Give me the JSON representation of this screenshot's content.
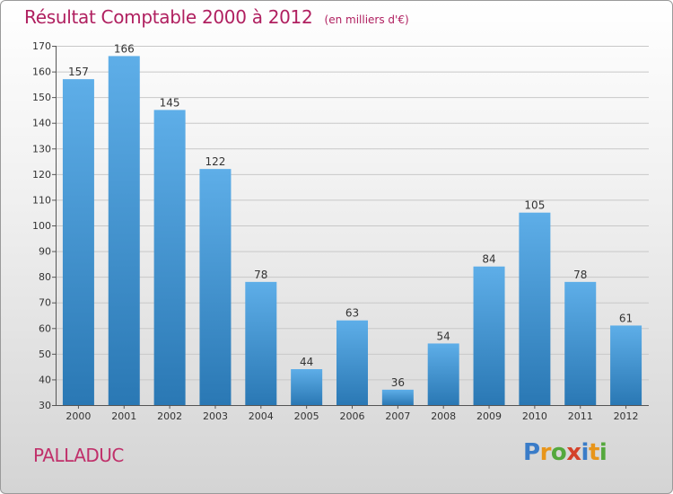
{
  "title": "Résultat Comptable 2000 à 2012",
  "subtitle": "(en milliers d'€)",
  "commune": "PALLADUC",
  "logo": {
    "text": "Proxiti",
    "colors": [
      "#3a7cc8",
      "#e8951a",
      "#54a83c",
      "#d4422a",
      "#3a7cc8",
      "#e8951a",
      "#54a83c"
    ]
  },
  "colors": {
    "bar_top": "#5eaee8",
    "bar_bottom": "#2a78b4",
    "title": "#b02060",
    "grid": "#c8c8c8"
  },
  "chart_data": {
    "type": "bar",
    "title": "Résultat Comptable 2000 à 2012",
    "categories": [
      "2000",
      "2001",
      "2002",
      "2003",
      "2004",
      "2005",
      "2006",
      "2007",
      "2008",
      "2009",
      "2010",
      "2011",
      "2012"
    ],
    "values": [
      157,
      166,
      145,
      122,
      78,
      44,
      63,
      36,
      54,
      84,
      105,
      78,
      61
    ],
    "ylim": [
      30,
      170
    ],
    "yticks": [
      30,
      40,
      50,
      60,
      70,
      80,
      90,
      100,
      110,
      120,
      130,
      140,
      150,
      160,
      170
    ],
    "xlabel": "",
    "ylabel": "",
    "grid": true
  }
}
